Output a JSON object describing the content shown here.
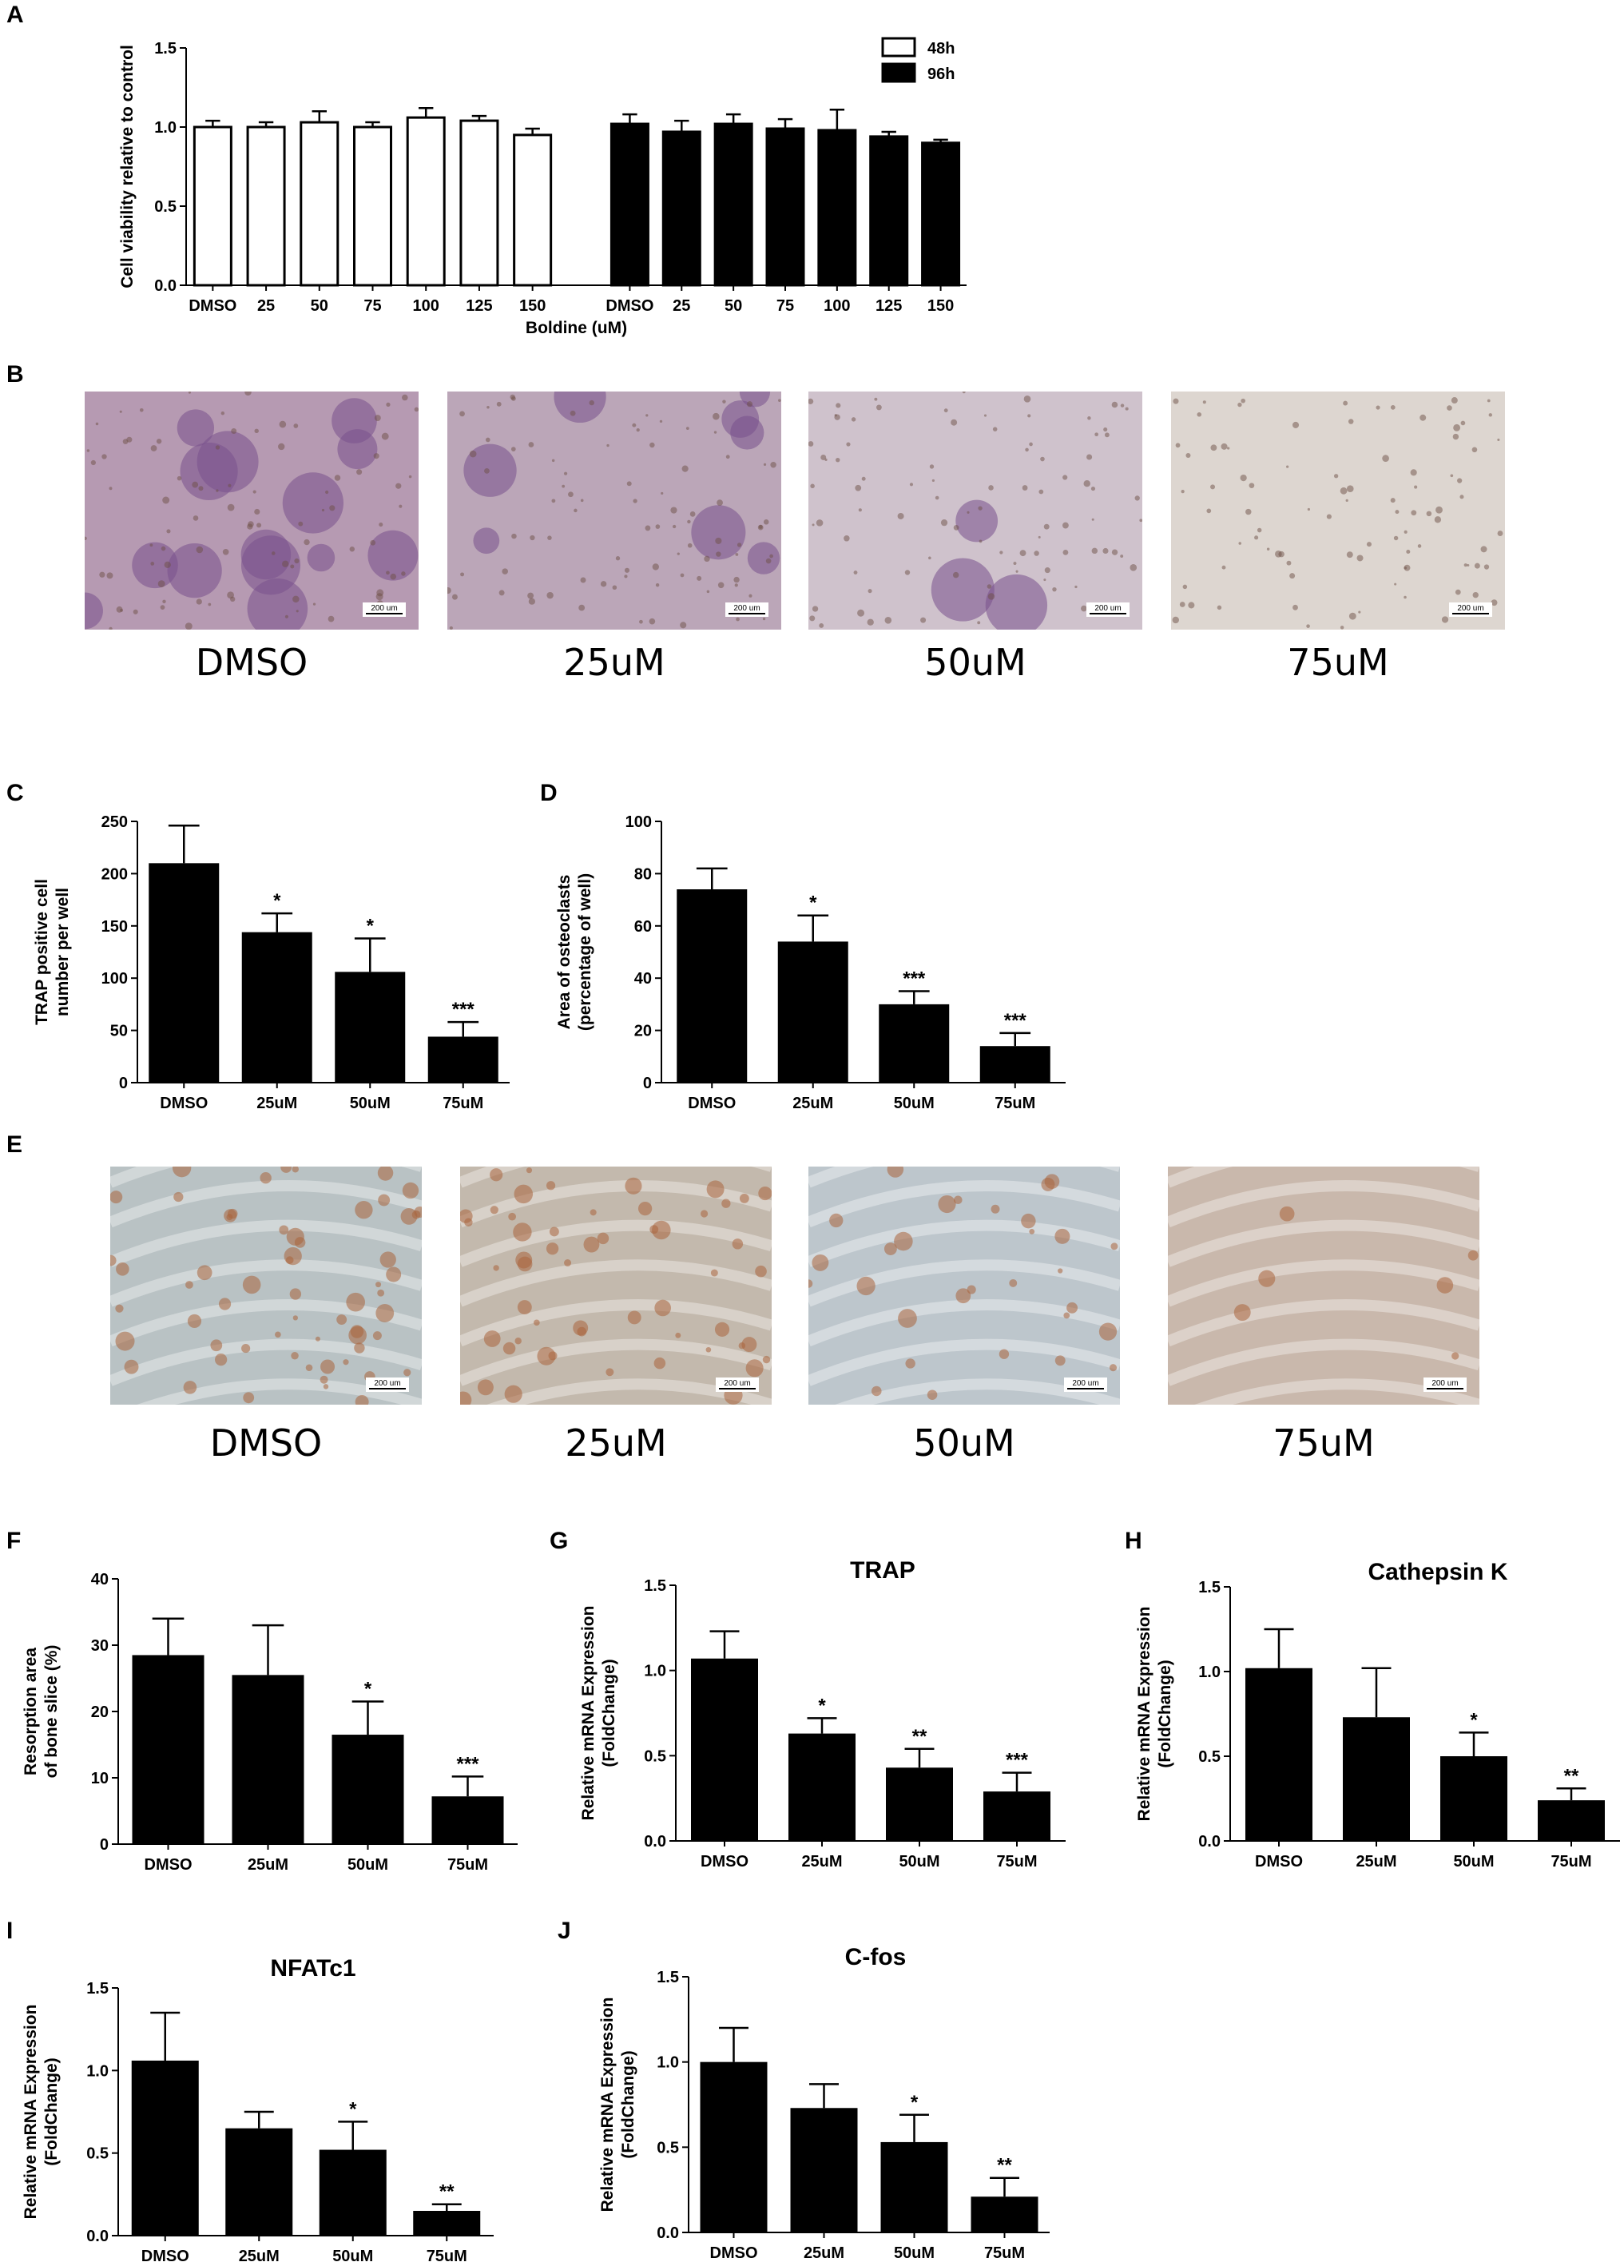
{
  "panel_letters": [
    "A",
    "B",
    "C",
    "D",
    "E",
    "F",
    "G",
    "H",
    "I",
    "J"
  ],
  "micrographs": {
    "B": {
      "labels": [
        "DMSO",
        "25uM",
        "50uM",
        "75uM"
      ],
      "scale_bar": "200 um",
      "colors": [
        "#b69ab2",
        "#bba6b8",
        "#cfc2cc",
        "#ddd6d0"
      ]
    },
    "E": {
      "labels": [
        "DMSO",
        "25uM",
        "50uM",
        "75uM"
      ],
      "scale_bar": "200 um",
      "colors": [
        "#b9c2c4",
        "#c3b9ad",
        "#bdc6cc",
        "#c9b8ac"
      ]
    }
  },
  "colors": {
    "bar_black": "#000000",
    "bar_white": "#ffffff",
    "axis": "#000000"
  },
  "chart_data": [
    {
      "id": "A",
      "type": "bar",
      "title": "",
      "xlabel": "Boldine (uM)",
      "ylabel": "Cell viability relative to control",
      "ylim": [
        0,
        1.5
      ],
      "yticks": [
        "0.0",
        "0.5",
        "1.0",
        "1.5"
      ],
      "categories": [
        "DMSO",
        "25",
        "50",
        "75",
        "100",
        "125",
        "150"
      ],
      "legend": {
        "position": "top-right",
        "entries": [
          "48h",
          "96h"
        ]
      },
      "series": [
        {
          "name": "48h",
          "color": "#ffffff",
          "values": [
            1.0,
            1.0,
            1.03,
            1.0,
            1.06,
            1.04,
            0.95
          ],
          "errors": [
            0.04,
            0.03,
            0.07,
            0.03,
            0.06,
            0.03,
            0.04
          ]
        },
        {
          "name": "96h",
          "color": "#000000",
          "values": [
            1.02,
            0.97,
            1.02,
            0.99,
            0.98,
            0.94,
            0.9
          ],
          "errors": [
            0.06,
            0.07,
            0.06,
            0.06,
            0.13,
            0.03,
            0.02
          ]
        }
      ]
    },
    {
      "id": "C",
      "type": "bar",
      "title": "",
      "ylabel_lines": [
        "TRAP positive cell",
        "number per well"
      ],
      "ylim": [
        0,
        250
      ],
      "yticks": [
        "0",
        "50",
        "100",
        "150",
        "200",
        "250"
      ],
      "categories": [
        "DMSO",
        "25uM",
        "50uM",
        "75uM"
      ],
      "values": [
        210,
        144,
        106,
        44
      ],
      "errors": [
        36,
        18,
        32,
        14
      ],
      "annotations": [
        "",
        "*",
        "*",
        "***"
      ]
    },
    {
      "id": "D",
      "type": "bar",
      "title": "",
      "ylabel_lines": [
        "Area of osteoclasts",
        "(percentage of well)"
      ],
      "ylim": [
        0,
        100
      ],
      "yticks": [
        "0",
        "20",
        "40",
        "60",
        "80",
        "100"
      ],
      "categories": [
        "DMSO",
        "25uM",
        "50uM",
        "75uM"
      ],
      "values": [
        74,
        54,
        30,
        14
      ],
      "errors": [
        8,
        10,
        5,
        5
      ],
      "annotations": [
        "",
        "*",
        "***",
        "***"
      ]
    },
    {
      "id": "F",
      "type": "bar",
      "title": "",
      "ylabel_lines": [
        "Resorption area",
        "of bone slice (%)"
      ],
      "ylim": [
        0,
        40
      ],
      "yticks": [
        "0",
        "10",
        "20",
        "30",
        "40"
      ],
      "categories": [
        "DMSO",
        "25uM",
        "50uM",
        "75uM"
      ],
      "values": [
        28.5,
        25.5,
        16.5,
        7.2
      ],
      "errors": [
        5.5,
        7.5,
        5.0,
        3.0
      ],
      "annotations": [
        "",
        "",
        "*",
        "***"
      ]
    },
    {
      "id": "G",
      "type": "bar",
      "title": "TRAP",
      "ylabel_lines": [
        "Relative mRNA Expression",
        "(FoldChange)"
      ],
      "ylim": [
        0,
        1.5
      ],
      "yticks": [
        "0.0",
        "0.5",
        "1.0",
        "1.5"
      ],
      "categories": [
        "DMSO",
        "25uM",
        "50uM",
        "75uM"
      ],
      "values": [
        1.07,
        0.63,
        0.43,
        0.29
      ],
      "errors": [
        0.16,
        0.09,
        0.11,
        0.11
      ],
      "annotations": [
        "",
        "*",
        "**",
        "***"
      ]
    },
    {
      "id": "H",
      "type": "bar",
      "title": "Cathepsin K",
      "ylabel_lines": [
        "Relative mRNA Expression",
        "(FoldChange)"
      ],
      "ylim": [
        0,
        1.5
      ],
      "yticks": [
        "0.0",
        "0.5",
        "1.0",
        "1.5"
      ],
      "categories": [
        "DMSO",
        "25uM",
        "50uM",
        "75uM"
      ],
      "values": [
        1.02,
        0.73,
        0.5,
        0.24
      ],
      "errors": [
        0.23,
        0.29,
        0.14,
        0.07
      ],
      "annotations": [
        "",
        "",
        "*",
        "**"
      ]
    },
    {
      "id": "I",
      "type": "bar",
      "title": "NFATc1",
      "ylabel_lines": [
        "Relative mRNA Expression",
        "(FoldChange)"
      ],
      "ylim": [
        0,
        1.5
      ],
      "yticks": [
        "0.0",
        "0.5",
        "1.0",
        "1.5"
      ],
      "categories": [
        "DMSO",
        "25uM",
        "50uM",
        "75uM"
      ],
      "values": [
        1.06,
        0.65,
        0.52,
        0.15
      ],
      "errors": [
        0.29,
        0.1,
        0.17,
        0.04
      ],
      "annotations": [
        "",
        "",
        "*",
        "**"
      ]
    },
    {
      "id": "J",
      "type": "bar",
      "title": "C-fos",
      "ylabel_lines": [
        "Relative mRNA Expression",
        "(FoldChange)"
      ],
      "ylim": [
        0,
        1.5
      ],
      "yticks": [
        "0.0",
        "0.5",
        "1.0",
        "1.5"
      ],
      "categories": [
        "DMSO",
        "25uM",
        "50uM",
        "75uM"
      ],
      "values": [
        1.0,
        0.73,
        0.53,
        0.21
      ],
      "errors": [
        0.2,
        0.14,
        0.16,
        0.11
      ],
      "annotations": [
        "",
        "",
        "*",
        "**"
      ]
    }
  ]
}
